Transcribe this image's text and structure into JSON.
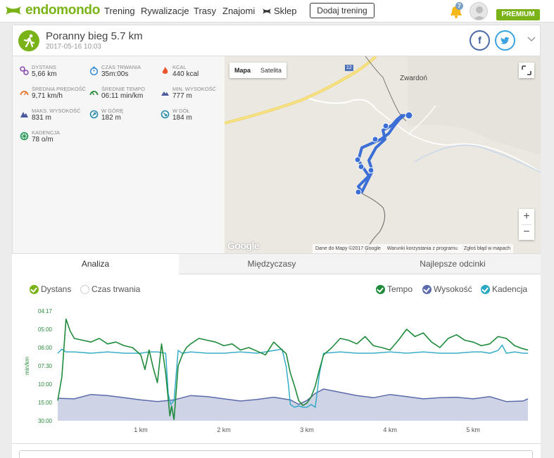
{
  "nav": {
    "brand": "endomondo",
    "links": [
      "Trening",
      "Rywalizacje",
      "Trasy",
      "Znajomi",
      "Sklep"
    ],
    "add_workout": "Dodaj trening",
    "notifications_count": "7",
    "premium": "PREMIUM",
    "brand_color": "#7ab317"
  },
  "workout": {
    "title": "Poranny bieg 5.7 km",
    "date": "2017-05-16 10:03",
    "share_fb": "f"
  },
  "stats": [
    {
      "label": "DYSTANS",
      "value": "5,66 km",
      "icon": "distance-pin-icon"
    },
    {
      "label": "CZAS TRWANIA",
      "value": "35m:00s",
      "icon": "stopwatch-icon"
    },
    {
      "label": "KCAL",
      "value": "440 kcal",
      "icon": "flame-icon"
    },
    {
      "label": "ŚREDNIA PRĘDKOŚĆ",
      "value": "9,71 km/h",
      "icon": "speedometer-icon"
    },
    {
      "label": "ŚREDNIE TEMPO",
      "value": "06:11 min/km",
      "icon": "pace-gauge-icon"
    },
    {
      "label": "MIN. WYSOKOŚĆ",
      "value": "777 m",
      "icon": "mountain-low-icon"
    },
    {
      "label": "MAKS. WYSOKOŚĆ",
      "value": "831 m",
      "icon": "mountain-high-icon"
    },
    {
      "label": "W GÓRĘ",
      "value": "182 m",
      "icon": "ascent-icon"
    },
    {
      "label": "W DÓŁ",
      "value": "184 m",
      "icon": "descent-icon"
    },
    {
      "label": "KADENCJA",
      "value": "78 o/m",
      "icon": "cadence-icon"
    }
  ],
  "map": {
    "type_map": "Mapa",
    "type_satellite": "Satelita",
    "town": "Zwardoń",
    "road": "12",
    "google": "Google",
    "attribution": [
      "Dane do Mapy ©2017 Google",
      "Warunki korzystania z programu",
      "Zgłoś błąd w mapach"
    ],
    "zoom_in": "+",
    "zoom_out": "−",
    "route_color": "#3b6fd6"
  },
  "tabs": [
    "Analiza",
    "Międzyczasy",
    "Najlepsze odcinki"
  ],
  "legend": {
    "distance": "Dystans",
    "duration": "Czas trwania",
    "tempo": "Tempo",
    "altitude": "Wysokość",
    "cadence": "Kadencja"
  },
  "chart_data": {
    "type": "line",
    "ylabel": "min/km",
    "y_ticks": [
      "04:17",
      "05:00",
      "06:00",
      "07:30",
      "10:00",
      "15:00",
      "30:00"
    ],
    "x_ticks": [
      "1 km",
      "2 km",
      "3 km",
      "4 km",
      "5 km"
    ],
    "x_range_km": [
      0,
      5.66
    ],
    "colors": {
      "tempo": "#1e8a3a",
      "cadence": "#2aa8c4",
      "altitude": "#5b6aaa",
      "altitude_fill": "#cfd3e6"
    },
    "series": [
      {
        "name": "Tempo",
        "x": [
          0.0,
          0.05,
          0.1,
          0.15,
          0.2,
          0.3,
          0.4,
          0.5,
          0.6,
          0.7,
          0.8,
          0.9,
          1.0,
          1.05,
          1.1,
          1.15,
          1.2,
          1.25,
          1.3,
          1.35,
          1.37,
          1.4,
          1.45,
          1.5,
          1.55,
          1.6,
          1.7,
          1.8,
          1.9,
          2.0,
          2.1,
          2.2,
          2.3,
          2.4,
          2.5,
          2.6,
          2.7,
          2.75,
          2.8,
          2.85,
          2.9,
          2.95,
          3.0,
          3.05,
          3.1,
          3.15,
          3.2,
          3.3,
          3.4,
          3.5,
          3.6,
          3.7,
          3.8,
          3.9,
          4.0,
          4.1,
          4.2,
          4.3,
          4.4,
          4.5,
          4.6,
          4.7,
          4.8,
          4.9,
          5.0,
          5.1,
          5.2,
          5.3,
          5.4,
          5.5,
          5.6,
          5.66
        ],
        "values": [
          14.5,
          9.0,
          4.6,
          5.1,
          5.5,
          5.6,
          5.7,
          5.5,
          5.8,
          5.7,
          5.9,
          6.0,
          6.6,
          8.0,
          6.2,
          7.8,
          9.8,
          5.8,
          8.5,
          26.0,
          18.0,
          29.0,
          7.5,
          6.6,
          6.0,
          5.8,
          5.5,
          5.6,
          5.7,
          5.9,
          5.8,
          6.2,
          6.0,
          6.3,
          6.6,
          5.7,
          6.2,
          6.5,
          8.5,
          10.5,
          14.5,
          17.5,
          15.5,
          13.5,
          10.5,
          8.0,
          6.6,
          6.0,
          5.5,
          5.6,
          5.8,
          5.4,
          5.9,
          6.0,
          6.2,
          5.6,
          5.0,
          5.4,
          5.2,
          5.7,
          6.0,
          5.5,
          5.3,
          5.6,
          5.7,
          5.9,
          5.8,
          5.4,
          5.5,
          5.9,
          6.1,
          6.2
        ]
      },
      {
        "name": "Kadencja",
        "x": [
          0.0,
          0.05,
          0.1,
          0.2,
          0.4,
          0.6,
          0.8,
          1.0,
          1.1,
          1.2,
          1.3,
          1.33,
          1.36,
          1.4,
          1.45,
          1.5,
          1.6,
          1.8,
          2.0,
          2.2,
          2.4,
          2.6,
          2.7,
          2.75,
          2.78,
          2.8,
          2.85,
          2.9,
          2.95,
          3.0,
          3.05,
          3.1,
          3.15,
          3.2,
          3.4,
          3.6,
          3.8,
          4.0,
          4.2,
          4.4,
          4.6,
          4.8,
          5.0,
          5.1,
          5.2,
          5.3,
          5.35,
          5.4,
          5.5,
          5.6,
          5.66
        ],
        "values": [
          80,
          83,
          81,
          81,
          80,
          81,
          80,
          80,
          81,
          81,
          80,
          50,
          42,
          45,
          82,
          80,
          81,
          80,
          80,
          81,
          80,
          82,
          83,
          70,
          55,
          42,
          40,
          41,
          40,
          40,
          42,
          40,
          65,
          80,
          81,
          80,
          80,
          81,
          80,
          81,
          80,
          80,
          81,
          81,
          80,
          82,
          86,
          80,
          81,
          80,
          80
        ]
      },
      {
        "name": "Wysokość",
        "x": [
          0.0,
          0.2,
          0.4,
          0.6,
          0.8,
          1.0,
          1.2,
          1.4,
          1.6,
          1.8,
          2.0,
          2.2,
          2.4,
          2.6,
          2.8,
          2.9,
          3.0,
          3.1,
          3.2,
          3.4,
          3.6,
          3.8,
          4.0,
          4.2,
          4.4,
          4.6,
          4.8,
          5.0,
          5.2,
          5.4,
          5.6,
          5.66
        ],
        "values": [
          811,
          810,
          818,
          816,
          812,
          808,
          805,
          808,
          816,
          814,
          810,
          806,
          809,
          813,
          808,
          800,
          807,
          820,
          828,
          822,
          816,
          812,
          818,
          814,
          810,
          812,
          813,
          810,
          814,
          805,
          806,
          810
        ]
      }
    ]
  }
}
